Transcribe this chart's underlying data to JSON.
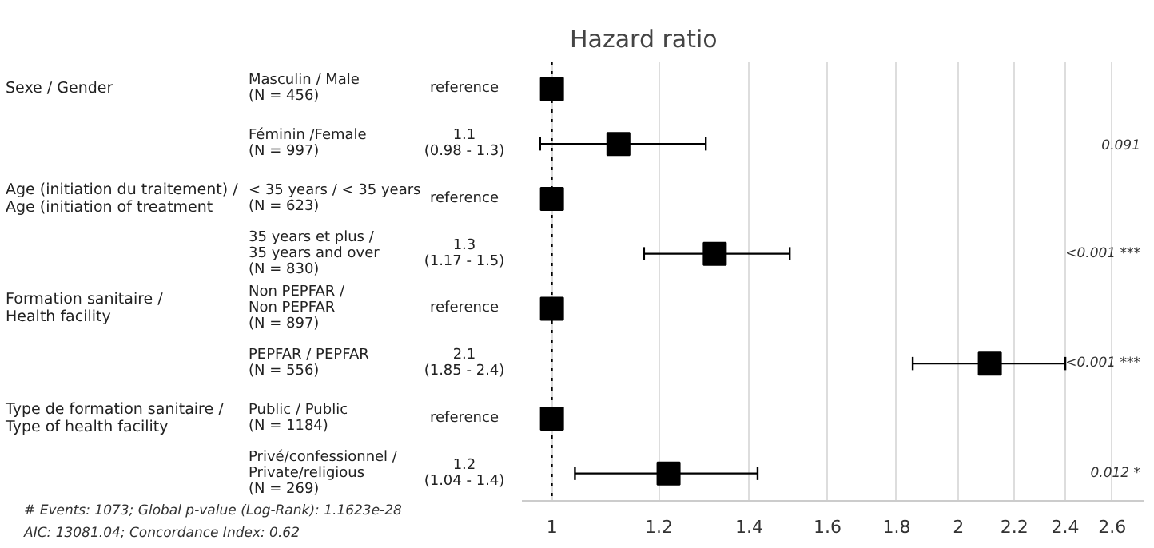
{
  "chart_data": {
    "type": "scatter",
    "title": "Hazard ratio",
    "orientation": "horizontal",
    "categories": [
      "Masculin / Male\n(N = 456)",
      "Féminin /Female\n(N = 997)",
      "< 35 years / < 35 years\n(N = 623)",
      "35 years et plus /\n35 years and over\n(N = 830)",
      "Non PEPFAR /\nNon PEPFAR\n(N = 897)",
      "PEPFAR / PEPFAR\n(N = 556)",
      "Public / Public\n(N = 1184)",
      "Privé/confessionnel /\nPrivate/religious\n(N = 269)"
    ],
    "values": [
      1,
      1.12,
      1,
      1.32,
      1,
      2.11,
      1,
      1.22
    ],
    "errors": [
      null,
      [
        0.98,
        1.3
      ],
      null,
      [
        1.17,
        1.5
      ],
      null,
      [
        1.85,
        2.4
      ],
      null,
      [
        1.04,
        1.42
      ]
    ],
    "color": "#000000",
    "marker": "square",
    "log": "x",
    "xlim": [
      0.95,
      2.75
    ],
    "xticks": [
      1,
      1.2,
      1.4,
      1.6,
      1.8,
      2,
      2.2,
      2.4,
      2.6
    ],
    "grid": "x",
    "ref_lines": [
      {
        "axis": "x",
        "value": 1,
        "color": "#000000",
        "line_style": "dotted"
      }
    ],
    "annotations": [
      "Sexe / Gender",
      "Age (initiation du traitement) /\nAge (initiation of treatment",
      "Formation sanitaire /\nHealth facility",
      "Type de formation sanitaire /\nType of health facility",
      "reference",
      "1.1\n(0.98 - 1.3)",
      "reference",
      "1.3\n(1.17 - 1.5)",
      "reference",
      "2.1\n(1.85 - 2.4)",
      "reference",
      "1.2\n(1.04 - 1.4)",
      "0.091",
      "<0.001 ***",
      "<0.001 ***",
      "0.012 *",
      "# Events: 1073; Global p-value (Log-Rank): 1.1623e-28",
      "AIC: 13081.04; Concordance Index: 0.62"
    ]
  }
}
